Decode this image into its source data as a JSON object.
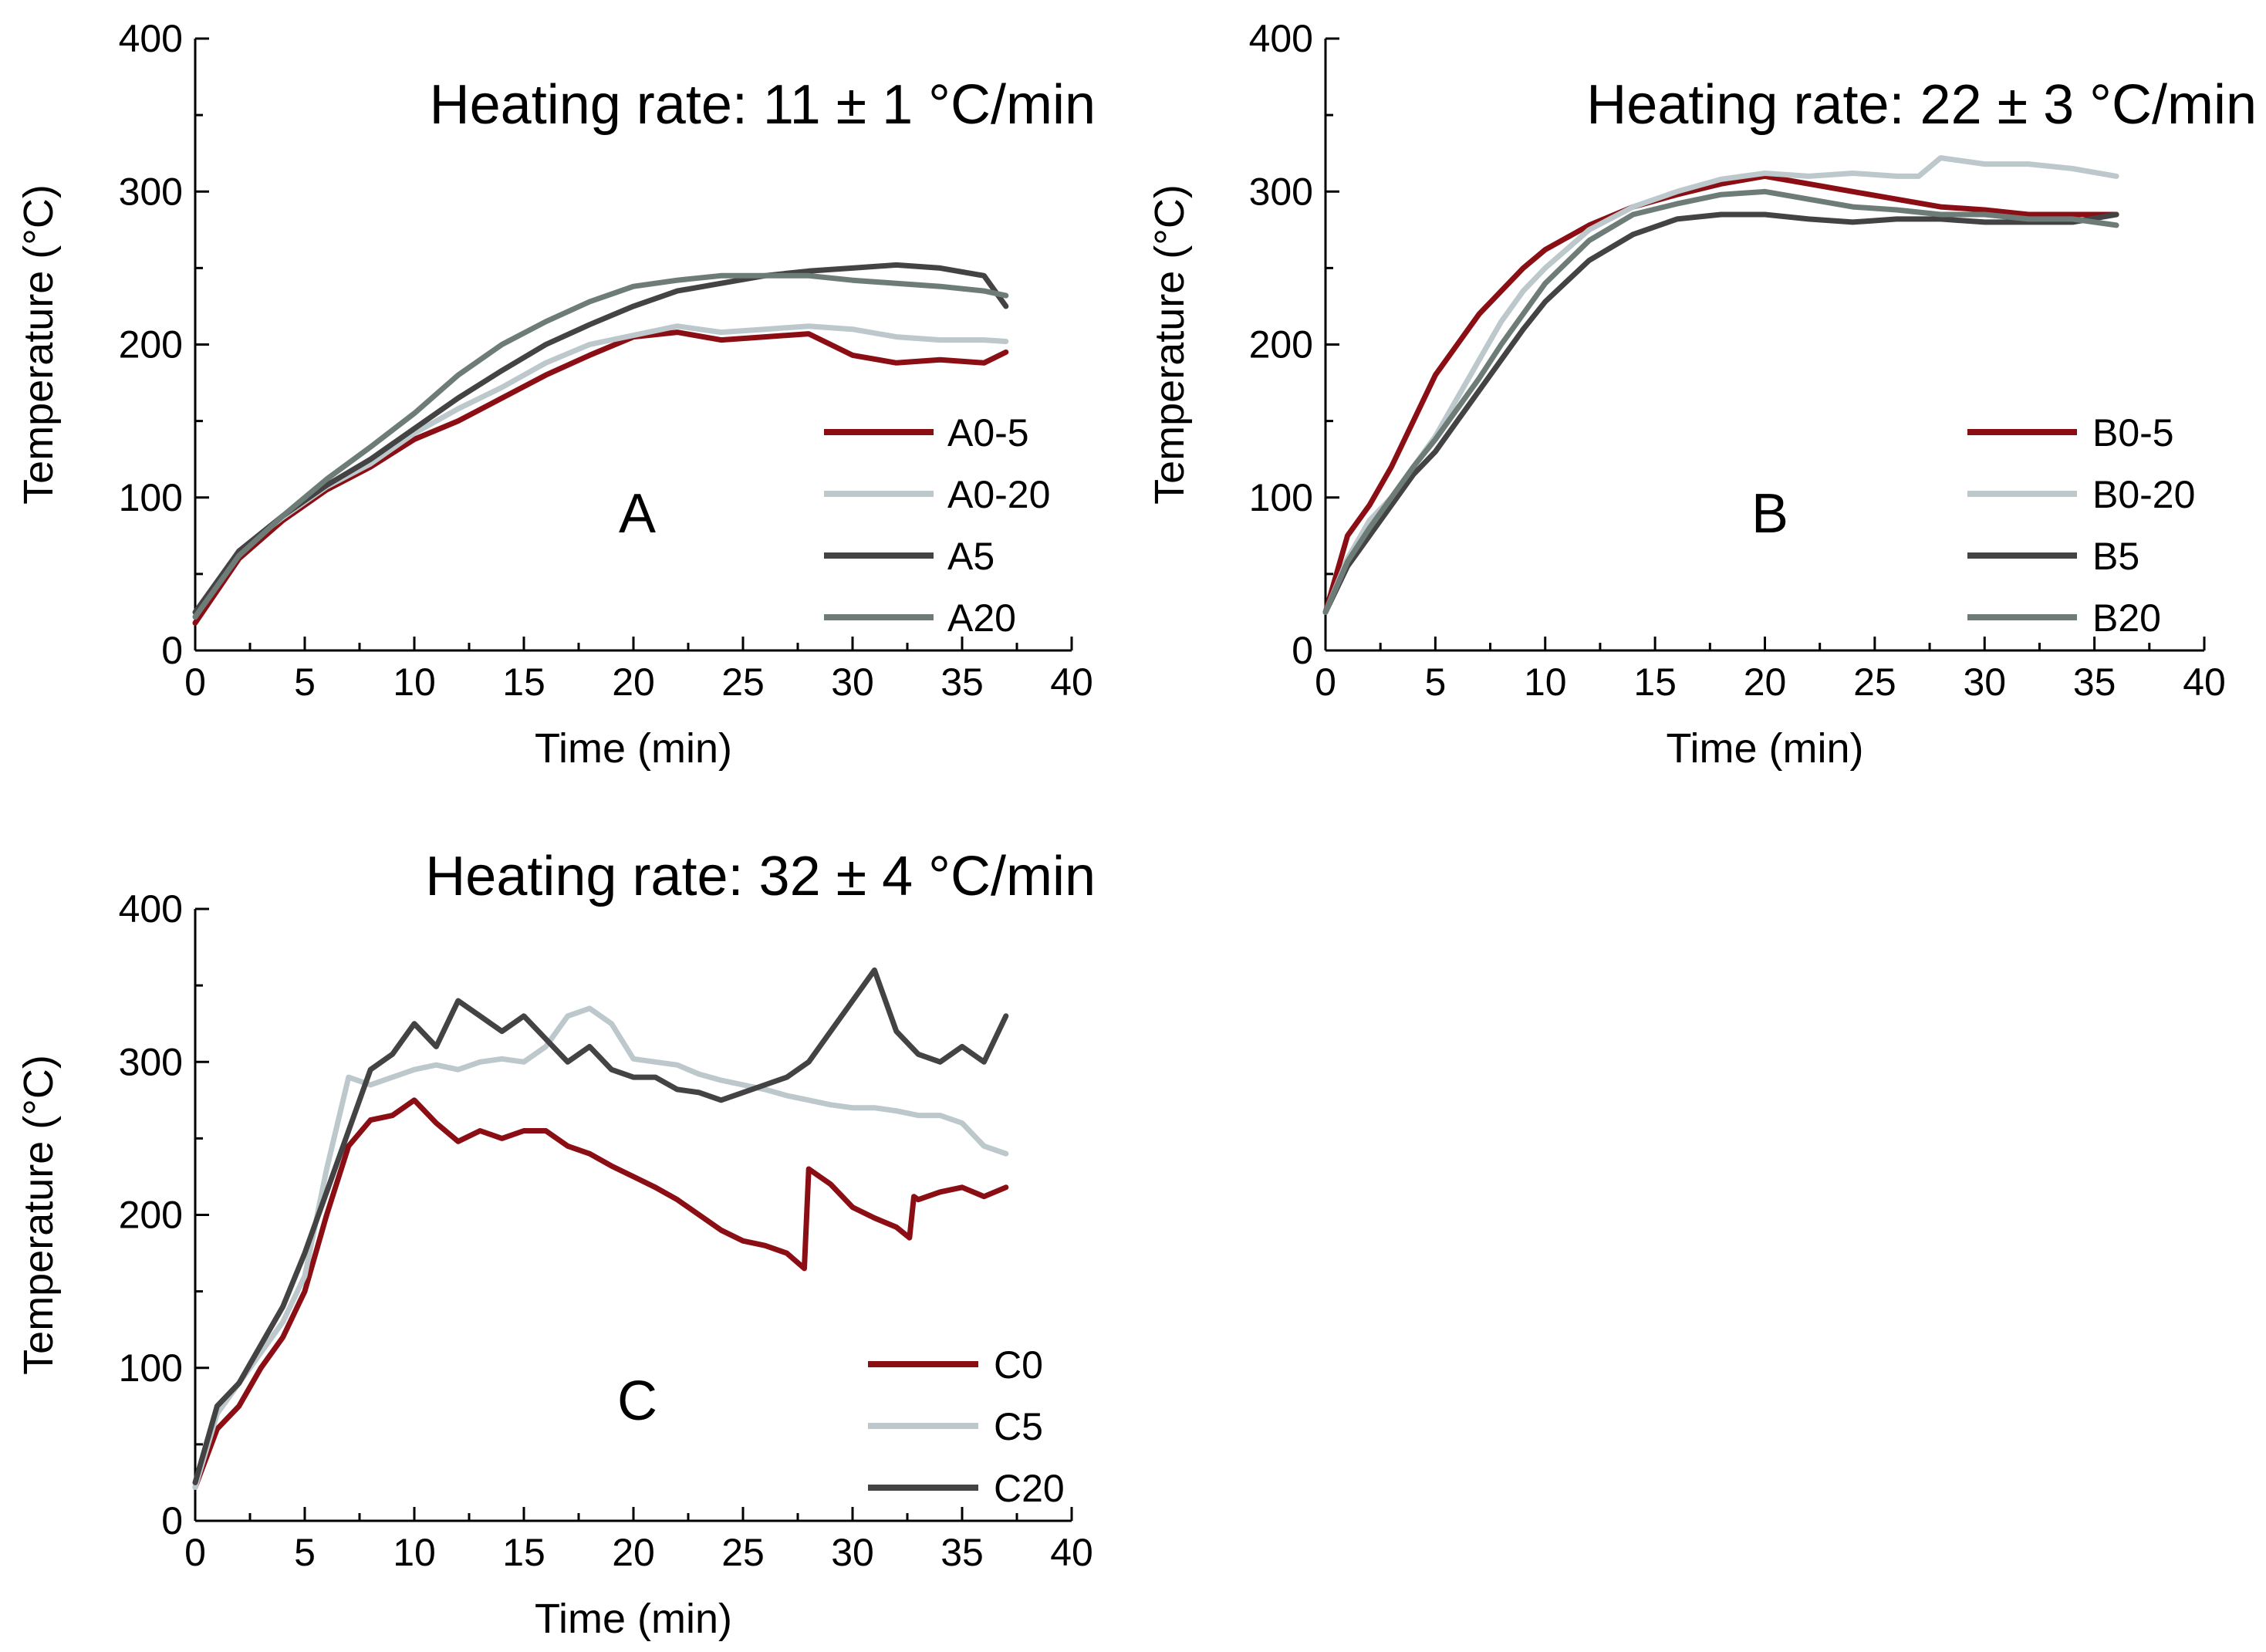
{
  "colors": {
    "red": "#8b0e14",
    "light_gray": "#bcc8cc",
    "dark_gray": "#434343",
    "mid_gray": "#6e7c78"
  },
  "chart_data": [
    {
      "type": "line",
      "title": "Heating rate: 11 ± 1 °C/min",
      "panel_label": "A",
      "xlabel": "Time (min)",
      "ylabel": "Temperature (°C)",
      "xlim": [
        0,
        40
      ],
      "ylim": [
        0,
        400
      ],
      "x_ticks": [
        0,
        5,
        10,
        15,
        20,
        25,
        30,
        35,
        40
      ],
      "y_ticks": [
        0,
        100,
        200,
        300,
        400
      ],
      "legend_position": "right",
      "series": [
        {
          "name": "A0-5",
          "color": "#8b0e14",
          "x": [
            0,
            2,
            4,
            6,
            8,
            10,
            12,
            14,
            16,
            18,
            20,
            22,
            24,
            26,
            28,
            30,
            32,
            34,
            36,
            37
          ],
          "y": [
            18,
            60,
            85,
            105,
            120,
            138,
            150,
            165,
            180,
            193,
            205,
            208,
            203,
            205,
            207,
            193,
            188,
            190,
            188,
            195
          ]
        },
        {
          "name": "A0-20",
          "color": "#bcc8cc",
          "x": [
            0,
            2,
            4,
            6,
            8,
            10,
            12,
            14,
            16,
            18,
            20,
            22,
            24,
            26,
            28,
            30,
            32,
            34,
            36,
            37
          ],
          "y": [
            22,
            65,
            87,
            107,
            122,
            142,
            158,
            172,
            188,
            200,
            206,
            212,
            208,
            210,
            212,
            210,
            205,
            203,
            203,
            202
          ]
        },
        {
          "name": "A5",
          "color": "#434343",
          "x": [
            0,
            2,
            4,
            6,
            8,
            10,
            12,
            14,
            16,
            18,
            20,
            22,
            24,
            26,
            28,
            30,
            32,
            34,
            36,
            37
          ],
          "y": [
            25,
            65,
            88,
            108,
            125,
            145,
            165,
            183,
            200,
            213,
            225,
            235,
            240,
            245,
            248,
            250,
            252,
            250,
            245,
            225
          ]
        },
        {
          "name": "A20",
          "color": "#6e7c78",
          "x": [
            0,
            2,
            4,
            6,
            8,
            10,
            12,
            14,
            16,
            18,
            20,
            22,
            24,
            26,
            28,
            30,
            32,
            34,
            36,
            37
          ],
          "y": [
            22,
            62,
            88,
            112,
            133,
            155,
            180,
            200,
            215,
            228,
            238,
            242,
            245,
            245,
            245,
            242,
            240,
            238,
            235,
            232
          ]
        }
      ]
    },
    {
      "type": "line",
      "title": "Heating rate: 22 ± 3  °C/min",
      "panel_label": "B",
      "xlabel": "Time (min)",
      "ylabel": "Temperature (°C)",
      "xlim": [
        0,
        40
      ],
      "ylim": [
        0,
        400
      ],
      "x_ticks": [
        0,
        5,
        10,
        15,
        20,
        25,
        30,
        35,
        40
      ],
      "y_ticks": [
        0,
        100,
        200,
        300,
        400
      ],
      "legend_position": "right",
      "series": [
        {
          "name": "B0-5",
          "color": "#8b0e14",
          "x": [
            0,
            1,
            2,
            3,
            4,
            5,
            6,
            7,
            8,
            9,
            10,
            12,
            14,
            16,
            18,
            20,
            22,
            24,
            26,
            28,
            30,
            32,
            34,
            36
          ],
          "y": [
            25,
            75,
            95,
            120,
            150,
            180,
            200,
            220,
            235,
            250,
            262,
            278,
            290,
            298,
            305,
            310,
            305,
            300,
            295,
            290,
            288,
            285,
            285,
            285
          ]
        },
        {
          "name": "B0-20",
          "color": "#bcc8cc",
          "x": [
            0,
            1,
            2,
            3,
            4,
            5,
            6,
            7,
            8,
            9,
            10,
            12,
            14,
            16,
            18,
            20,
            22,
            24,
            26,
            27,
            28,
            30,
            32,
            34,
            36
          ],
          "y": [
            25,
            60,
            85,
            100,
            120,
            140,
            165,
            190,
            215,
            235,
            250,
            275,
            290,
            300,
            308,
            312,
            310,
            312,
            310,
            310,
            322,
            318,
            318,
            315,
            310
          ]
        },
        {
          "name": "B5",
          "color": "#434343",
          "x": [
            0,
            1,
            2,
            3,
            4,
            5,
            6,
            7,
            8,
            9,
            10,
            12,
            14,
            16,
            18,
            20,
            22,
            24,
            26,
            28,
            30,
            32,
            34,
            36
          ],
          "y": [
            25,
            55,
            75,
            95,
            115,
            130,
            150,
            170,
            190,
            210,
            228,
            255,
            272,
            282,
            285,
            285,
            282,
            280,
            282,
            282,
            280,
            280,
            280,
            285
          ]
        },
        {
          "name": "B20",
          "color": "#6e7c78",
          "x": [
            0,
            1,
            2,
            3,
            4,
            5,
            6,
            7,
            8,
            9,
            10,
            12,
            14,
            16,
            18,
            20,
            22,
            24,
            26,
            28,
            30,
            32,
            34,
            36
          ],
          "y": [
            25,
            58,
            80,
            100,
            120,
            138,
            158,
            178,
            200,
            220,
            240,
            268,
            285,
            292,
            298,
            300,
            295,
            290,
            288,
            285,
            285,
            282,
            282,
            278
          ]
        }
      ]
    },
    {
      "type": "line",
      "title": "Heating rate: 32 ± 4 °C/min",
      "panel_label": "C",
      "xlabel": "Time (min)",
      "ylabel": "Temperature (°C)",
      "xlim": [
        0,
        40
      ],
      "ylim": [
        0,
        400
      ],
      "x_ticks": [
        0,
        5,
        10,
        15,
        20,
        25,
        30,
        35,
        40
      ],
      "y_ticks": [
        0,
        100,
        200,
        300,
        400
      ],
      "legend_position": "bottom-right",
      "series": [
        {
          "name": "C0",
          "color": "#8b0e14",
          "x": [
            0,
            1,
            2,
            3,
            4,
            5,
            6,
            7,
            8,
            9,
            10,
            11,
            12,
            13,
            14,
            15,
            16,
            17,
            18,
            19,
            20,
            21,
            22,
            23,
            24,
            25,
            26,
            27,
            27.8,
            28,
            29,
            30,
            31,
            32,
            32.6,
            32.8,
            33,
            34,
            35,
            36,
            37
          ],
          "y": [
            22,
            60,
            75,
            100,
            120,
            150,
            200,
            245,
            262,
            265,
            275,
            260,
            248,
            255,
            250,
            255,
            255,
            245,
            240,
            232,
            225,
            218,
            210,
            200,
            190,
            183,
            180,
            175,
            165,
            230,
            220,
            205,
            198,
            192,
            185,
            212,
            210,
            215,
            218,
            212,
            218
          ]
        },
        {
          "name": "C5",
          "color": "#bcc8cc",
          "x": [
            0,
            1,
            2,
            3,
            4,
            5,
            6,
            7,
            8,
            9,
            10,
            11,
            12,
            13,
            14,
            15,
            16,
            17,
            18,
            19,
            20,
            21,
            22,
            23,
            24,
            25,
            26,
            27,
            28,
            29,
            30,
            31,
            32,
            33,
            34,
            35,
            36,
            37
          ],
          "y": [
            22,
            70,
            90,
            110,
            130,
            160,
            230,
            290,
            285,
            290,
            295,
            298,
            295,
            300,
            302,
            300,
            310,
            330,
            335,
            325,
            302,
            300,
            298,
            292,
            288,
            285,
            282,
            278,
            275,
            272,
            270,
            270,
            268,
            265,
            265,
            260,
            245,
            240
          ]
        },
        {
          "name": "C20",
          "color": "#434343",
          "x": [
            0,
            1,
            2,
            3,
            4,
            5,
            6,
            7,
            8,
            9,
            10,
            11,
            12,
            13,
            14,
            15,
            16,
            17,
            18,
            19,
            20,
            21,
            22,
            23,
            24,
            25,
            26,
            27,
            28,
            29,
            30,
            31,
            32,
            33,
            34,
            35,
            36,
            37
          ],
          "y": [
            25,
            75,
            90,
            115,
            140,
            175,
            215,
            255,
            295,
            305,
            325,
            310,
            340,
            330,
            320,
            330,
            315,
            300,
            310,
            295,
            290,
            290,
            282,
            280,
            275,
            280,
            285,
            290,
            300,
            320,
            340,
            360,
            320,
            305,
            300,
            310,
            300,
            330
          ]
        }
      ]
    }
  ]
}
